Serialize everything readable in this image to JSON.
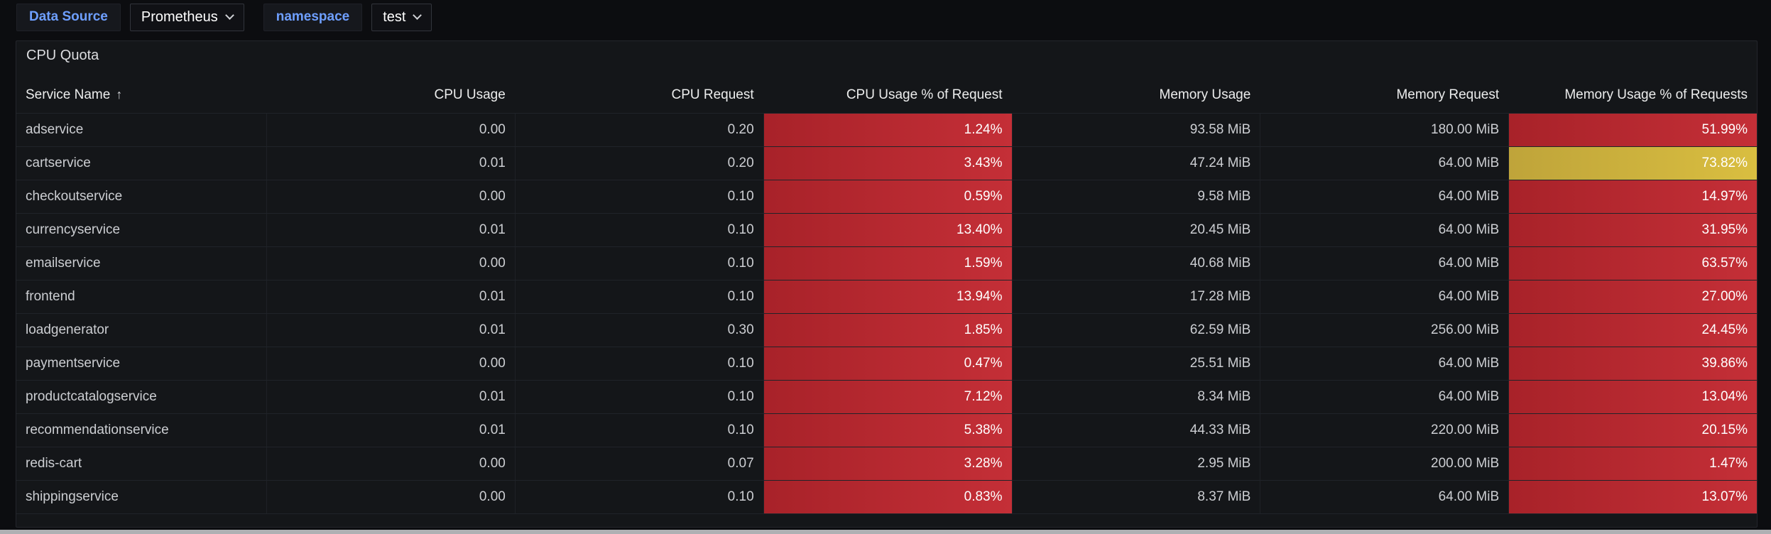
{
  "toolbar": {
    "variables": [
      {
        "label": "Data Source",
        "value": "Prometheus"
      },
      {
        "label": "namespace",
        "value": "test"
      }
    ]
  },
  "panel": {
    "title": "CPU Quota"
  },
  "table": {
    "sorted_column": "Service Name",
    "sort_direction": "ascending",
    "sort_arrow": "↑",
    "columns": [
      {
        "label": "Service Name",
        "align": "left"
      },
      {
        "label": "CPU Usage",
        "align": "right"
      },
      {
        "label": "CPU Request",
        "align": "right"
      },
      {
        "label": "CPU Usage % of Request",
        "align": "right"
      },
      {
        "label": "Memory Usage",
        "align": "right"
      },
      {
        "label": "Memory Request",
        "align": "right"
      },
      {
        "label": "Memory Usage % of Requests",
        "align": "right"
      }
    ],
    "rows": [
      {
        "service": "adservice",
        "cpu_usage": "0.00",
        "cpu_request": "0.20",
        "cpu_pct": "1.24%",
        "cpu_pct_level": "red",
        "mem_usage": "93.58 MiB",
        "mem_request": "180.00 MiB",
        "mem_pct": "51.99%",
        "mem_pct_level": "red"
      },
      {
        "service": "cartservice",
        "cpu_usage": "0.01",
        "cpu_request": "0.20",
        "cpu_pct": "3.43%",
        "cpu_pct_level": "red",
        "mem_usage": "47.24 MiB",
        "mem_request": "64.00 MiB",
        "mem_pct": "73.82%",
        "mem_pct_level": "yellow"
      },
      {
        "service": "checkoutservice",
        "cpu_usage": "0.00",
        "cpu_request": "0.10",
        "cpu_pct": "0.59%",
        "cpu_pct_level": "red",
        "mem_usage": "9.58 MiB",
        "mem_request": "64.00 MiB",
        "mem_pct": "14.97%",
        "mem_pct_level": "red"
      },
      {
        "service": "currencyservice",
        "cpu_usage": "0.01",
        "cpu_request": "0.10",
        "cpu_pct": "13.40%",
        "cpu_pct_level": "red",
        "mem_usage": "20.45 MiB",
        "mem_request": "64.00 MiB",
        "mem_pct": "31.95%",
        "mem_pct_level": "red"
      },
      {
        "service": "emailservice",
        "cpu_usage": "0.00",
        "cpu_request": "0.10",
        "cpu_pct": "1.59%",
        "cpu_pct_level": "red",
        "mem_usage": "40.68 MiB",
        "mem_request": "64.00 MiB",
        "mem_pct": "63.57%",
        "mem_pct_level": "red"
      },
      {
        "service": "frontend",
        "cpu_usage": "0.01",
        "cpu_request": "0.10",
        "cpu_pct": "13.94%",
        "cpu_pct_level": "red",
        "mem_usage": "17.28 MiB",
        "mem_request": "64.00 MiB",
        "mem_pct": "27.00%",
        "mem_pct_level": "red"
      },
      {
        "service": "loadgenerator",
        "cpu_usage": "0.01",
        "cpu_request": "0.30",
        "cpu_pct": "1.85%",
        "cpu_pct_level": "red",
        "mem_usage": "62.59 MiB",
        "mem_request": "256.00 MiB",
        "mem_pct": "24.45%",
        "mem_pct_level": "red"
      },
      {
        "service": "paymentservice",
        "cpu_usage": "0.00",
        "cpu_request": "0.10",
        "cpu_pct": "0.47%",
        "cpu_pct_level": "red",
        "mem_usage": "25.51 MiB",
        "mem_request": "64.00 MiB",
        "mem_pct": "39.86%",
        "mem_pct_level": "red"
      },
      {
        "service": "productcatalogservice",
        "cpu_usage": "0.01",
        "cpu_request": "0.10",
        "cpu_pct": "7.12%",
        "cpu_pct_level": "red",
        "mem_usage": "8.34 MiB",
        "mem_request": "64.00 MiB",
        "mem_pct": "13.04%",
        "mem_pct_level": "red"
      },
      {
        "service": "recommendationservice",
        "cpu_usage": "0.01",
        "cpu_request": "0.10",
        "cpu_pct": "5.38%",
        "cpu_pct_level": "red",
        "mem_usage": "44.33 MiB",
        "mem_request": "220.00 MiB",
        "mem_pct": "20.15%",
        "mem_pct_level": "red"
      },
      {
        "service": "redis-cart",
        "cpu_usage": "0.00",
        "cpu_request": "0.07",
        "cpu_pct": "3.28%",
        "cpu_pct_level": "red",
        "mem_usage": "2.95 MiB",
        "mem_request": "200.00 MiB",
        "mem_pct": "1.47%",
        "mem_pct_level": "red"
      },
      {
        "service": "shippingservice",
        "cpu_usage": "0.00",
        "cpu_request": "0.10",
        "cpu_pct": "0.83%",
        "cpu_pct_level": "red",
        "mem_usage": "8.37 MiB",
        "mem_request": "64.00 MiB",
        "mem_pct": "13.07%",
        "mem_pct_level": "red"
      }
    ]
  },
  "colors": {
    "cell_red": "#b3242b",
    "cell_yellow": "#cdb23d",
    "variable_label_blue": "#6e9fff",
    "panel_background": "#141619",
    "page_background": "#0c0d10"
  }
}
